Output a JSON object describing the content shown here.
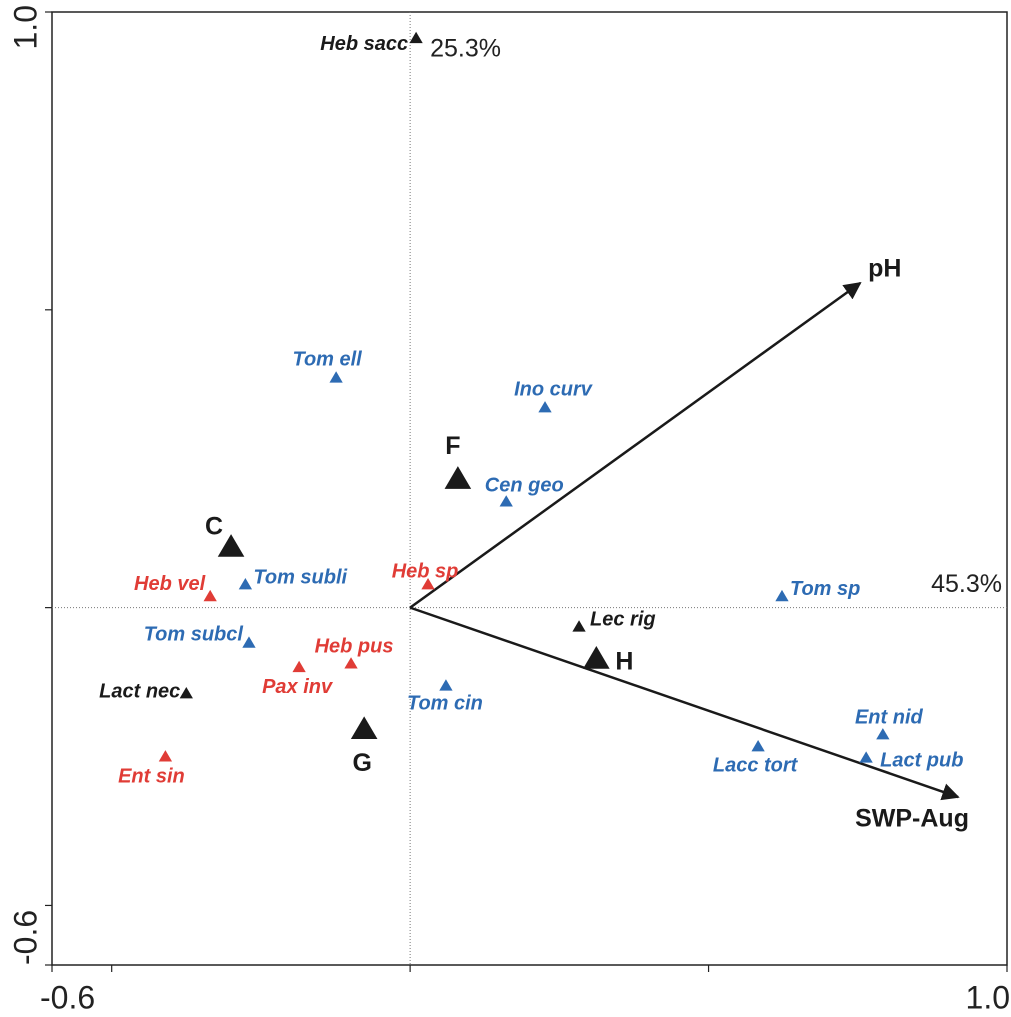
{
  "chart_data": {
    "type": "biplot",
    "xlim": [
      -0.6,
      1.0
    ],
    "ylim": [
      -0.6,
      1.0
    ],
    "xticks": [
      {
        "value": -0.6,
        "label": "-0.6"
      },
      {
        "value": 1.0,
        "label": "1.0"
      }
    ],
    "yticks": [
      {
        "value": -0.6,
        "label": "-0.6"
      },
      {
        "value": 1.0,
        "label": "1.0"
      }
    ],
    "xminorticks": [
      -0.5,
      0,
      0.5
    ],
    "yminorticks": [
      -0.5,
      0,
      0.5
    ],
    "x_axis_annotation": "45.3%",
    "y_axis_annotation": "25.3%",
    "species": {
      "labels": [
        "Heb sacc",
        "Tom ell",
        "Ino curv",
        "Cen geo",
        "Tom subli",
        "Heb vel",
        "Heb sp",
        "Tom sp",
        "Tom subcl",
        "Lec rig",
        "Heb pus",
        "Pax inv",
        "Lact nec",
        "Tom cin",
        "Ent sin",
        "Lacc tort",
        "Ent nid",
        "Lact pub"
      ],
      "x": [
        0.01,
        -0.124,
        0.226,
        0.161,
        -0.276,
        -0.335,
        0.03,
        0.623,
        -0.27,
        0.283,
        -0.099,
        -0.186,
        -0.375,
        0.06,
        -0.41,
        0.583,
        0.792,
        0.764
      ],
      "y": [
        0.955,
        0.385,
        0.335,
        0.177,
        0.038,
        0.018,
        0.038,
        0.018,
        -0.06,
        -0.033,
        -0.095,
        -0.101,
        -0.145,
        -0.132,
        -0.251,
        -0.234,
        -0.214,
        -0.253
      ],
      "colors": [
        "#1a1a1a",
        "#2d6bb3",
        "#2d6bb3",
        "#2d6bb3",
        "#2d6bb3",
        "#e03c36",
        "#e03c36",
        "#2d6bb3",
        "#2d6bb3",
        "#1a1a1a",
        "#e03c36",
        "#e03c36",
        "#1a1a1a",
        "#2d6bb3",
        "#e03c36",
        "#2d6bb3",
        "#2d6bb3",
        "#2d6bb3"
      ]
    },
    "sites": {
      "labels": [
        "F",
        "C",
        "H",
        "G"
      ],
      "x": [
        0.08,
        -0.3,
        0.312,
        -0.077
      ],
      "y": [
        0.214,
        0.1,
        -0.088,
        -0.206
      ],
      "color": "#1a1a1a"
    },
    "arrows": {
      "labels": [
        "pH",
        "SWP-Aug"
      ],
      "x": [
        0.754,
        0.918
      ],
      "y": [
        0.545,
        -0.318
      ],
      "color": "#1a1a1a"
    }
  }
}
